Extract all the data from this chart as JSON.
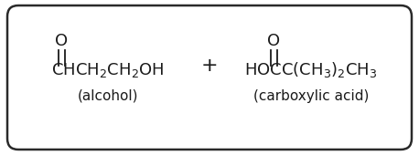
{
  "background_color": "#ffffff",
  "border_color": "#2a2a2a",
  "border_linewidth": 1.8,
  "text_color": "#1a1a1a",
  "plus_text": "+",
  "plus_fontsize": 16,
  "alcohol_formula": "CHCH$_2$CH$_2$OH",
  "alcohol_formula_fontsize": 13,
  "alcohol_label": "(alcohol)",
  "alcohol_label_fontsize": 11,
  "alcohol_O": "O",
  "alcohol_O_fontsize": 13,
  "acid_formula": "HOCC(CH$_3$)$_2$CH$_3$",
  "acid_formula_fontsize": 13,
  "acid_label": "(carboxylic acid)",
  "acid_label_fontsize": 11,
  "acid_O": "O",
  "acid_O_fontsize": 13
}
